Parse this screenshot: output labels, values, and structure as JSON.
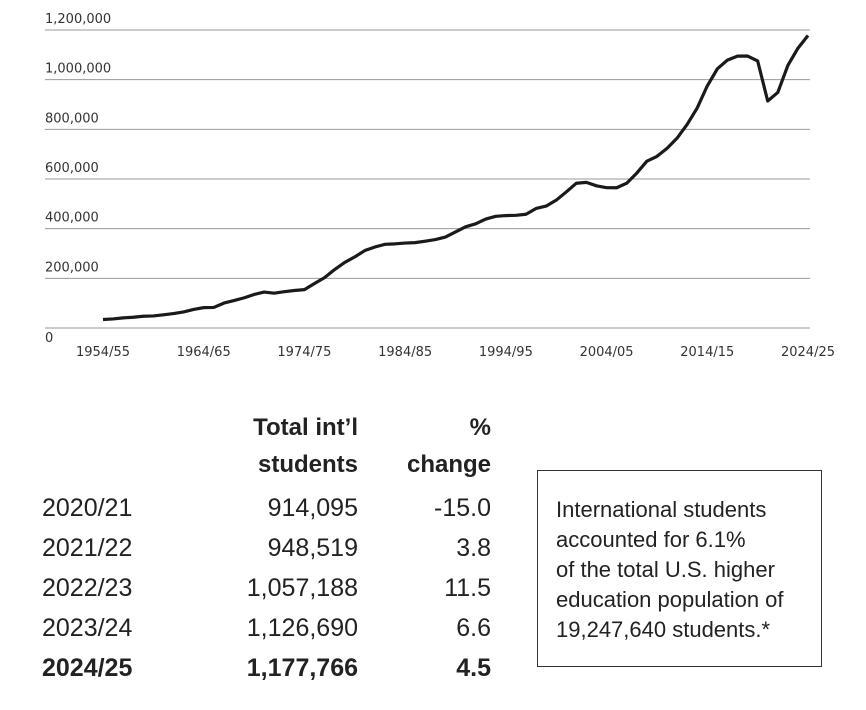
{
  "chart_data": {
    "type": "line",
    "categories": [
      "1954/55",
      null,
      null,
      null,
      null,
      null,
      null,
      null,
      null,
      null,
      "1964/65",
      null,
      null,
      null,
      null,
      null,
      null,
      null,
      null,
      null,
      "1974/75",
      null,
      null,
      null,
      null,
      null,
      null,
      null,
      null,
      null,
      "1984/85",
      null,
      null,
      null,
      null,
      null,
      null,
      null,
      null,
      null,
      "1994/95",
      null,
      null,
      null,
      null,
      null,
      null,
      null,
      null,
      null,
      "2004/05",
      null,
      null,
      null,
      null,
      null,
      null,
      null,
      null,
      null,
      "2014/15",
      null,
      null,
      null,
      null,
      null,
      null,
      null,
      null,
      null,
      "2024/25"
    ],
    "values": [
      34232,
      36494,
      40666,
      43391,
      47245,
      48486,
      53107,
      58086,
      64705,
      74814,
      82045,
      82709,
      100262,
      110315,
      121362,
      134959,
      144708,
      140126,
      146097,
      151066,
      154580,
      179344,
      203068,
      235509,
      263938,
      286343,
      311882,
      326299,
      336985,
      338894,
      342113,
      343777,
      349609,
      356187,
      366354,
      386851,
      407529,
      419585,
      438618,
      449749,
      452653,
      453787,
      457984,
      481280,
      490933,
      514723,
      547867,
      582996,
      586323,
      572509,
      565039,
      564766,
      582984,
      623805,
      671616,
      690923,
      723277,
      764495,
      819644,
      886052,
      974926,
      1043839,
      1078822,
      1094792,
      1095299,
      1075496,
      914095,
      948519,
      1057188,
      1126690,
      1177766
    ],
    "color": "#1a1a1a",
    "ylim": [
      0,
      1200000
    ],
    "yticks": [
      0,
      {
        "value": 200000,
        "label": "200,000"
      },
      {
        "value": 400000,
        "label": "400,000"
      },
      {
        "value": 600000,
        "label": "600,000"
      },
      {
        "value": 800000,
        "label": "800,000"
      },
      {
        "value": 1000000,
        "label": "1,000,000"
      },
      {
        "value": 1200000,
        "label": "1,200,000"
      }
    ],
    "grid": true
  },
  "table": {
    "columns": [
      [
        "Total int’l",
        "students"
      ],
      [
        "%",
        "change"
      ]
    ],
    "rows": [
      [
        "2020/21",
        "914,095",
        "-15.0"
      ],
      [
        "2021/22",
        "948,519",
        "3.8"
      ],
      [
        "2022/23",
        "1,057,188",
        "11.5"
      ],
      [
        "2023/24",
        "1,126,690",
        "6.6"
      ],
      [
        "2024/25",
        "1,177,766",
        "4.5"
      ]
    ]
  },
  "note": [
    "International students",
    "accounted for 6.1%",
    "of the total U.S. higher",
    "education population of",
    "19,247,640 students.*"
  ]
}
